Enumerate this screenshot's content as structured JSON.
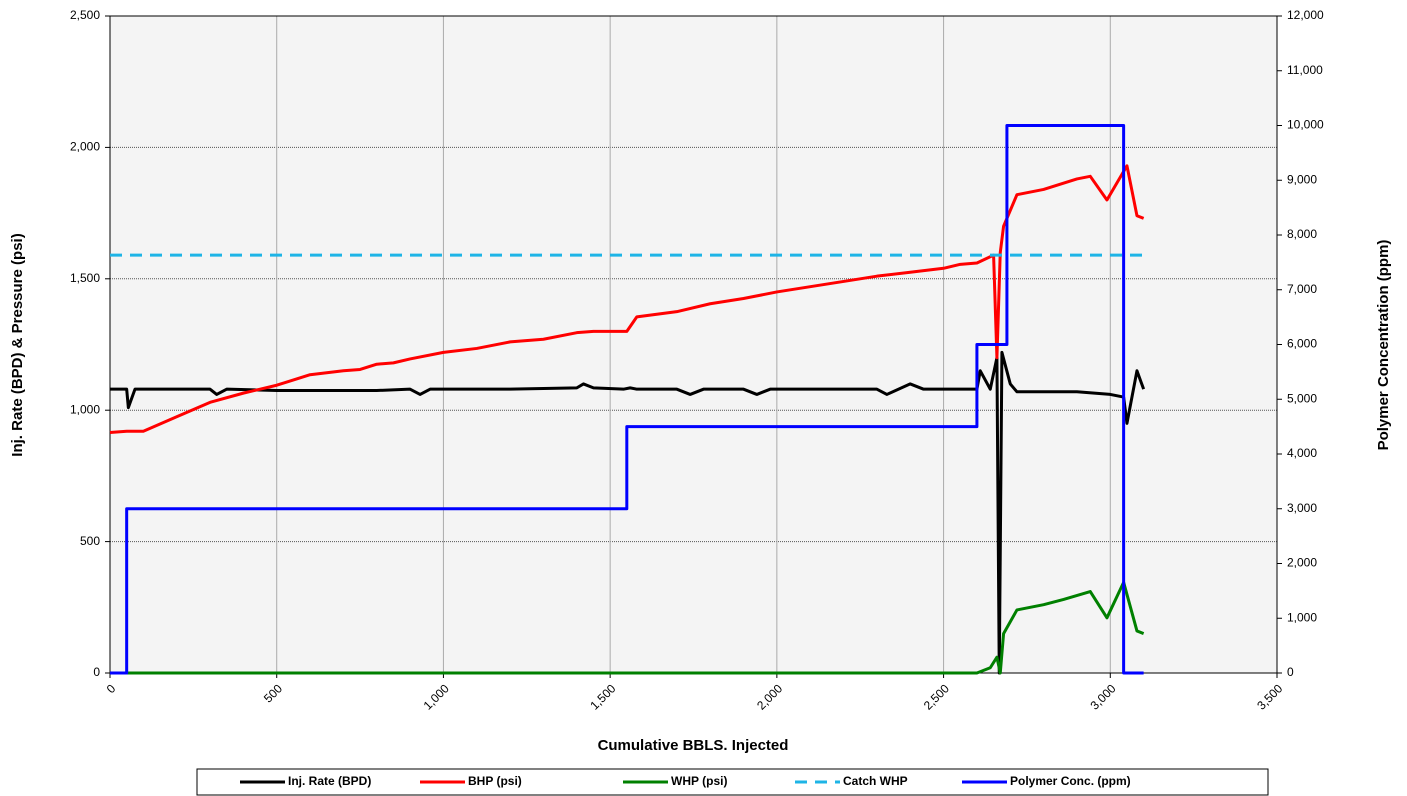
{
  "chart_data": {
    "type": "line",
    "x_label": "Cumulative BBLS. Injected",
    "y_label": "Inj. Rate (BPD) & Pressure (psi)",
    "y2_label": "Polymer Concentration (ppm)",
    "xlim": [
      0,
      3500
    ],
    "xticks": [
      0,
      500,
      {
        "value": 1000,
        "label": "1,000"
      },
      {
        "value": 1500,
        "label": "1,500"
      },
      {
        "value": 2000,
        "label": "2,000"
      },
      {
        "value": 2500,
        "label": "2,500"
      },
      {
        "value": 3000,
        "label": "3,000"
      },
      {
        "value": 3500,
        "label": "3,500"
      }
    ],
    "ylim": [
      0,
      2500
    ],
    "yticks": [
      0,
      500,
      {
        "value": 1000,
        "label": "1,000"
      },
      {
        "value": 1500,
        "label": "1,500"
      },
      {
        "value": 2000,
        "label": "2,000"
      },
      {
        "value": 2500,
        "label": "2,500"
      }
    ],
    "y2lim": [
      0,
      12000
    ],
    "y2ticks": [
      0,
      {
        "value": 1000,
        "label": "1,000"
      },
      {
        "value": 2000,
        "label": "2,000"
      },
      {
        "value": 3000,
        "label": "3,000"
      },
      {
        "value": 4000,
        "label": "4,000"
      },
      {
        "value": 5000,
        "label": "5,000"
      },
      {
        "value": 6000,
        "label": "6,000"
      },
      {
        "value": 7000,
        "label": "7,000"
      },
      {
        "value": 8000,
        "label": "8,000"
      },
      {
        "value": 9000,
        "label": "9,000"
      },
      {
        "value": 10000,
        "label": "10,000"
      },
      {
        "value": 11000,
        "label": "11,000"
      },
      {
        "value": 12000,
        "label": "12,000"
      }
    ],
    "grid": true,
    "legend": "bottom",
    "series": [
      {
        "name": "Inj. Rate (BPD)",
        "color": "#000000",
        "dash": false,
        "x": [
          0,
          50,
          55,
          75,
          300,
          320,
          350,
          500,
          700,
          800,
          900,
          930,
          960,
          1200,
          1400,
          1420,
          1450,
          1540,
          1560,
          1580,
          1700,
          1740,
          1780,
          1900,
          1940,
          1980,
          2300,
          2330,
          2400,
          2440,
          2600,
          2610,
          2640,
          2660,
          2667,
          2675,
          2700,
          2720,
          2900,
          3000,
          3040,
          3050,
          3080,
          3100
        ],
        "values": [
          1080,
          1080,
          1010,
          1080,
          1080,
          1060,
          1080,
          1075,
          1075,
          1075,
          1080,
          1060,
          1080,
          1080,
          1085,
          1100,
          1085,
          1080,
          1085,
          1080,
          1080,
          1060,
          1080,
          1080,
          1060,
          1080,
          1080,
          1060,
          1100,
          1080,
          1080,
          1150,
          1080,
          1200,
          0,
          1220,
          1100,
          1070,
          1070,
          1060,
          1050,
          950,
          1150,
          1080
        ]
      },
      {
        "name": "BHP (psi)",
        "color": "#ff0000",
        "dash": false,
        "x": [
          0,
          50,
          100,
          200,
          300,
          400,
          500,
          600,
          700,
          750,
          800,
          850,
          900,
          1000,
          1100,
          1200,
          1300,
          1400,
          1450,
          1550,
          1580,
          1700,
          1800,
          1900,
          2000,
          2100,
          2200,
          2300,
          2400,
          2500,
          2550,
          2600,
          2650,
          2660,
          2670,
          2680,
          2720,
          2800,
          2900,
          2940,
          2990,
          3050,
          3080,
          3100
        ],
        "values": [
          915,
          920,
          920,
          975,
          1030,
          1065,
          1095,
          1135,
          1150,
          1155,
          1175,
          1180,
          1195,
          1220,
          1235,
          1260,
          1270,
          1295,
          1300,
          1300,
          1355,
          1375,
          1405,
          1425,
          1450,
          1470,
          1490,
          1510,
          1525,
          1540,
          1555,
          1560,
          1590,
          1200,
          1600,
          1700,
          1820,
          1840,
          1880,
          1890,
          1800,
          1930,
          1740,
          1730
        ]
      },
      {
        "name": "WHP (psi)",
        "color": "#008000",
        "dash": false,
        "x": [
          0,
          2600,
          2640,
          2660,
          2670,
          2680,
          2720,
          2800,
          2860,
          2940,
          2990,
          3040,
          3080,
          3100
        ],
        "values": [
          0,
          0,
          20,
          60,
          0,
          150,
          240,
          260,
          280,
          310,
          210,
          345,
          160,
          150
        ]
      },
      {
        "name": "Catch WHP",
        "color": "#1eb4e6",
        "dash": true,
        "x": [
          0,
          3100
        ],
        "values": [
          1590,
          1590
        ]
      },
      {
        "name": "Polymer Conc. (ppm)",
        "color": "#0000ff",
        "dash": false,
        "axis": "y2",
        "x": [
          0,
          50,
          50,
          1550,
          1550,
          2600,
          2600,
          2690,
          2690,
          3040,
          3040,
          3100
        ],
        "values": [
          0,
          0,
          3000,
          3000,
          4500,
          4500,
          6000,
          6000,
          10000,
          10000,
          0,
          0
        ]
      }
    ]
  }
}
